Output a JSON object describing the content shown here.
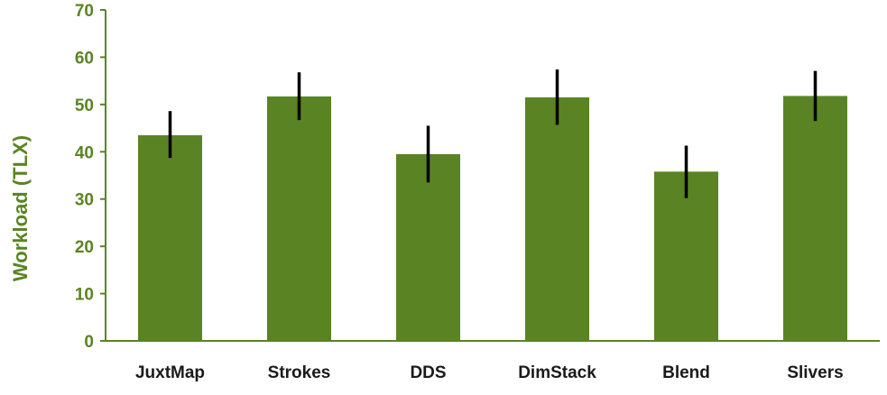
{
  "chart_data": {
    "type": "bar",
    "title": "",
    "xlabel": "",
    "ylabel": "Workload (TLX)",
    "categories": [
      "JuxtMap",
      "Strokes",
      "DDS",
      "DimStack",
      "Blend",
      "Slivers"
    ],
    "values": [
      43.5,
      51.7,
      39.5,
      51.5,
      35.8,
      51.8
    ],
    "error_bars": [
      {
        "low": 38.7,
        "high": 48.6
      },
      {
        "low": 46.7,
        "high": 56.8
      },
      {
        "low": 33.5,
        "high": 45.5
      },
      {
        "low": 45.7,
        "high": 57.4
      },
      {
        "low": 30.2,
        "high": 41.3
      },
      {
        "low": 46.5,
        "high": 57.1
      }
    ],
    "ylim": [
      0,
      70
    ],
    "yticks": [
      "0",
      "10",
      "20",
      "30",
      "40",
      "50",
      "60",
      "70"
    ],
    "grid": false,
    "legend": "none",
    "colors": {
      "bar": "#5a8423",
      "axis_text": "#5a8423",
      "axis_line": "#5a8423",
      "error_bar": "#000000",
      "category_text": "#1a1a1a"
    }
  }
}
